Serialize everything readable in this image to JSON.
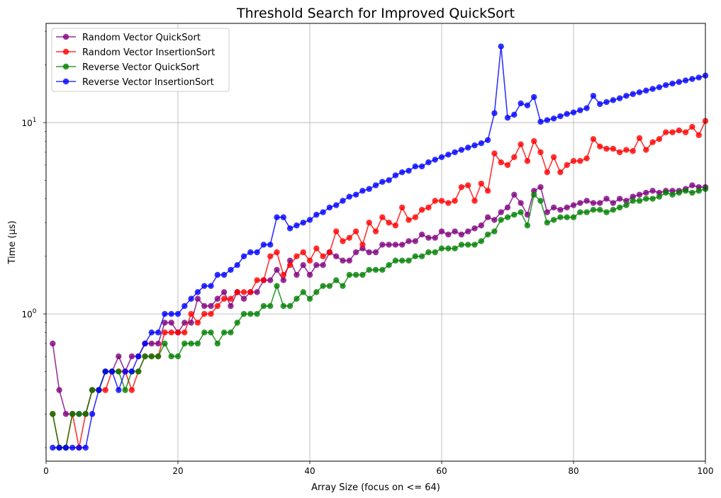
{
  "chart_data": {
    "type": "line",
    "title": "Threshold Search for Improved QuickSort",
    "xlabel": "Array Size (focus on <= 64)",
    "ylabel": "Time (µs)",
    "xlim": [
      0,
      100
    ],
    "ylim": [
      0.17,
      33
    ],
    "yscale": "log",
    "grid": true,
    "legend_position": "top-left",
    "xticks": [
      0,
      20,
      40,
      60,
      80,
      100
    ],
    "yticks": [
      {
        "value": 1,
        "base": "10",
        "exp": "0"
      },
      {
        "value": 10,
        "base": "10",
        "exp": "1"
      }
    ],
    "series": [
      {
        "name": "Random Vector QuickSort",
        "color": "#800080",
        "values": [
          0.7,
          0.4,
          0.3,
          0.3,
          0.3,
          0.3,
          0.4,
          0.4,
          0.5,
          0.5,
          0.6,
          0.5,
          0.6,
          0.6,
          0.7,
          0.7,
          0.7,
          0.9,
          0.9,
          0.8,
          0.9,
          0.9,
          1.2,
          1.1,
          1.1,
          1.2,
          1.3,
          1.1,
          1.3,
          1.2,
          1.3,
          1.3,
          1.5,
          1.5,
          1.7,
          1.5,
          1.9,
          1.6,
          1.8,
          1.6,
          1.8,
          1.8,
          2.1,
          2.0,
          1.9,
          1.9,
          2.1,
          2.2,
          2.1,
          2.1,
          2.3,
          2.3,
          2.3,
          2.3,
          2.4,
          2.4,
          2.6,
          2.5,
          2.5,
          2.7,
          2.6,
          2.7,
          2.6,
          2.7,
          2.8,
          2.9,
          3.2,
          3.1,
          3.4,
          3.6,
          4.2,
          3.8,
          3.3,
          4.4,
          4.6,
          3.4,
          3.6,
          3.5,
          3.6,
          3.7,
          3.8,
          3.9,
          3.8,
          3.8,
          4.0,
          3.8,
          4.0,
          3.9,
          4.1,
          4.2,
          4.3,
          4.4,
          4.3,
          4.4,
          4.4,
          4.4,
          4.5,
          4.7,
          4.6,
          4.6
        ]
      },
      {
        "name": "Random Vector InsertionSort",
        "color": "#ff0000",
        "values": [
          0.3,
          0.2,
          0.2,
          0.3,
          0.2,
          0.3,
          0.4,
          0.4,
          0.4,
          0.5,
          0.5,
          0.5,
          0.4,
          0.5,
          0.6,
          0.6,
          0.6,
          0.8,
          0.8,
          0.8,
          0.8,
          1.0,
          0.9,
          1.0,
          1.0,
          1.1,
          1.2,
          1.2,
          1.3,
          1.3,
          1.3,
          1.5,
          1.5,
          2.0,
          2.1,
          1.6,
          1.8,
          2.0,
          2.1,
          1.9,
          2.2,
          2.0,
          2.1,
          2.7,
          2.4,
          2.5,
          2.7,
          2.3,
          3.0,
          2.7,
          3.2,
          3.0,
          2.9,
          3.6,
          3.1,
          3.2,
          3.5,
          3.6,
          3.9,
          3.9,
          3.8,
          3.9,
          4.6,
          4.7,
          3.9,
          4.8,
          4.4,
          6.9,
          6.2,
          6.0,
          6.6,
          7.7,
          6.3,
          8.0,
          7.0,
          5.5,
          6.6,
          5.5,
          6.0,
          6.3,
          6.3,
          6.5,
          8.2,
          7.5,
          7.3,
          7.3,
          7.0,
          7.2,
          7.1,
          8.3,
          7.2,
          7.9,
          8.2,
          8.9,
          8.9,
          9.1,
          8.9,
          9.5,
          8.6,
          10.2
        ]
      },
      {
        "name": "Reverse Vector QuickSort",
        "color": "#008000",
        "values": [
          0.3,
          0.2,
          0.2,
          0.3,
          0.3,
          0.3,
          0.4,
          0.4,
          0.5,
          0.5,
          0.5,
          0.4,
          0.5,
          0.5,
          0.6,
          0.6,
          0.6,
          0.7,
          0.6,
          0.6,
          0.7,
          0.7,
          0.7,
          0.8,
          0.8,
          0.7,
          0.8,
          0.8,
          0.9,
          1.0,
          1.0,
          1.0,
          1.1,
          1.1,
          1.4,
          1.1,
          1.1,
          1.2,
          1.3,
          1.2,
          1.3,
          1.4,
          1.4,
          1.5,
          1.4,
          1.6,
          1.6,
          1.6,
          1.7,
          1.7,
          1.7,
          1.8,
          1.9,
          1.9,
          1.9,
          2.0,
          2.0,
          2.1,
          2.1,
          2.2,
          2.2,
          2.2,
          2.3,
          2.3,
          2.3,
          2.4,
          2.6,
          2.7,
          3.1,
          3.2,
          3.3,
          3.4,
          2.9,
          4.2,
          3.9,
          3.0,
          3.1,
          3.2,
          3.2,
          3.2,
          3.4,
          3.4,
          3.5,
          3.5,
          3.4,
          3.5,
          3.6,
          3.7,
          3.9,
          3.9,
          4.0,
          4.0,
          4.1,
          4.3,
          4.2,
          4.3,
          4.4,
          4.3,
          4.4,
          4.5
        ]
      },
      {
        "name": "Reverse Vector InsertionSort",
        "color": "#0000ff",
        "values": [
          0.2,
          0.2,
          0.2,
          0.2,
          0.2,
          0.2,
          0.3,
          0.4,
          0.5,
          0.5,
          0.4,
          0.5,
          0.5,
          0.6,
          0.7,
          0.8,
          0.8,
          1.0,
          1.0,
          1.0,
          1.1,
          1.2,
          1.3,
          1.4,
          1.4,
          1.6,
          1.6,
          1.7,
          1.8,
          2.0,
          2.1,
          2.1,
          2.3,
          2.3,
          3.2,
          3.2,
          2.8,
          2.9,
          3.0,
          3.1,
          3.3,
          3.4,
          3.6,
          3.7,
          3.9,
          4.1,
          4.2,
          4.4,
          4.5,
          4.7,
          4.9,
          5.0,
          5.3,
          5.5,
          5.6,
          5.9,
          5.9,
          6.2,
          6.4,
          6.6,
          6.8,
          7.0,
          7.2,
          7.4,
          7.6,
          7.8,
          8.1,
          11.2,
          25.0,
          10.6,
          11.0,
          12.6,
          12.3,
          13.6,
          10.1,
          10.3,
          10.5,
          10.8,
          11.1,
          11.3,
          11.6,
          11.9,
          13.8,
          12.5,
          12.8,
          13.1,
          13.4,
          13.8,
          14.1,
          14.4,
          14.7,
          15.0,
          15.3,
          15.7,
          16.0,
          16.3,
          16.6,
          16.9,
          17.2,
          17.6
        ]
      }
    ]
  }
}
